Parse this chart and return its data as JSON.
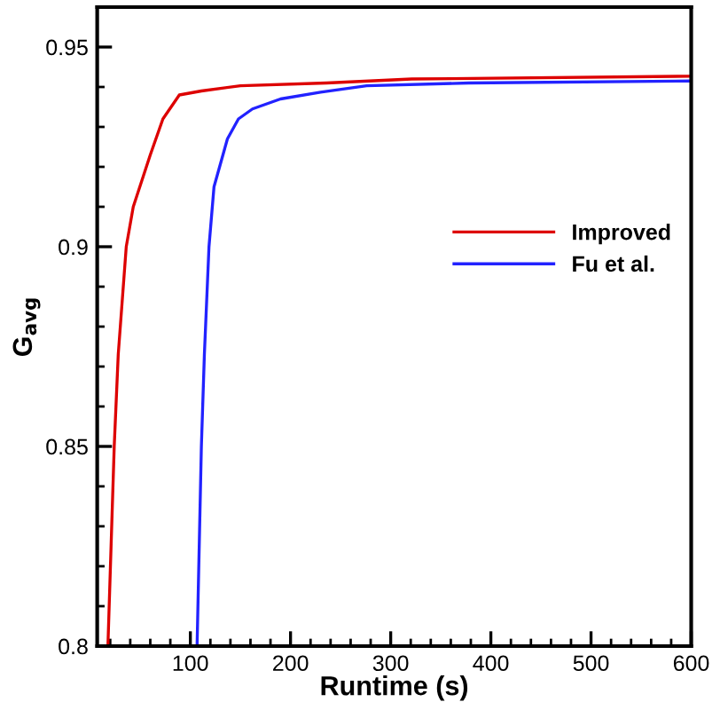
{
  "chart_data": {
    "type": "line",
    "xlabel": "Runtime (s)",
    "ylabel": "G$_{avg}$",
    "xlim": [
      7,
      600
    ],
    "ylim": [
      0.8,
      0.96
    ],
    "xticks": [
      100,
      200,
      300,
      400,
      500,
      600
    ],
    "yticks": [
      0.8,
      0.85,
      0.9,
      0.95
    ],
    "grid": false,
    "legend": "right",
    "marker": "none",
    "line_style": "solid",
    "series": [
      {
        "name": "Improved",
        "color": "#dd0000",
        "x": [
          17.7,
          24,
          28,
          36,
          43,
          60,
          72.6,
          89,
          111,
          150,
          236,
          321,
          600
        ],
        "values": [
          0.8,
          0.85,
          0.873,
          0.9,
          0.91,
          0.923,
          0.932,
          0.938,
          0.939,
          0.9403,
          0.941,
          0.942,
          0.9427
        ]
      },
      {
        "name": "Fu et al.",
        "color": "#2222ff",
        "x": [
          106.7,
          111,
          114,
          118.6,
          123.6,
          137,
          148,
          162,
          190,
          230,
          276,
          378,
          600
        ],
        "values": [
          0.8,
          0.85,
          0.873,
          0.9,
          0.915,
          0.927,
          0.932,
          0.9345,
          0.937,
          0.9387,
          0.9403,
          0.941,
          0.9415
        ]
      }
    ]
  }
}
